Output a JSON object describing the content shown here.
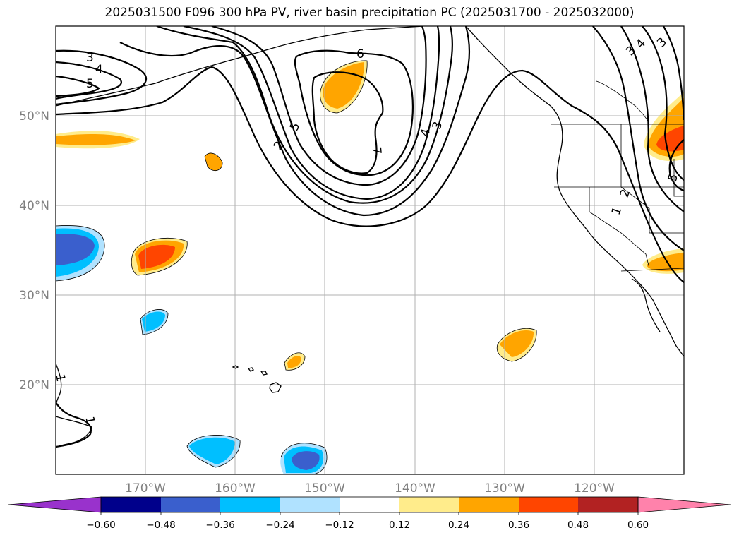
{
  "title": "2025031500 F096 300 hPa PV, river basin precipitation PC (2025031700 - 2025032000)",
  "map": {
    "lon_labels": [
      "170°W",
      "160°W",
      "150°W",
      "140°W",
      "130°W",
      "120°W"
    ],
    "lat_labels": [
      "50°N",
      "40°N",
      "30°N",
      "20°N"
    ],
    "extent": {
      "lon": [
        -180,
        -110
      ],
      "lat": [
        10,
        60
      ]
    },
    "gridlines": true
  },
  "contour_labels": [
    "3",
    "4",
    "5",
    "6",
    "7",
    "5",
    "2",
    "4",
    "3",
    "3",
    "4",
    "3",
    "2",
    "1",
    "5",
    "1",
    "1"
  ],
  "colorbar": {
    "ticks": [
      "−0.60",
      "−0.48",
      "−0.36",
      "−0.24",
      "−0.12",
      "0.12",
      "0.24",
      "0.36",
      "0.48",
      "0.60"
    ],
    "colors": [
      "#9932cc",
      "#00008b",
      "#3a5fcd",
      "#00bfff",
      "#b0e2ff",
      "#ffffff",
      "#ffec8b",
      "#ffa500",
      "#ff4500",
      "#b22222",
      "#ff82ab"
    ]
  }
}
